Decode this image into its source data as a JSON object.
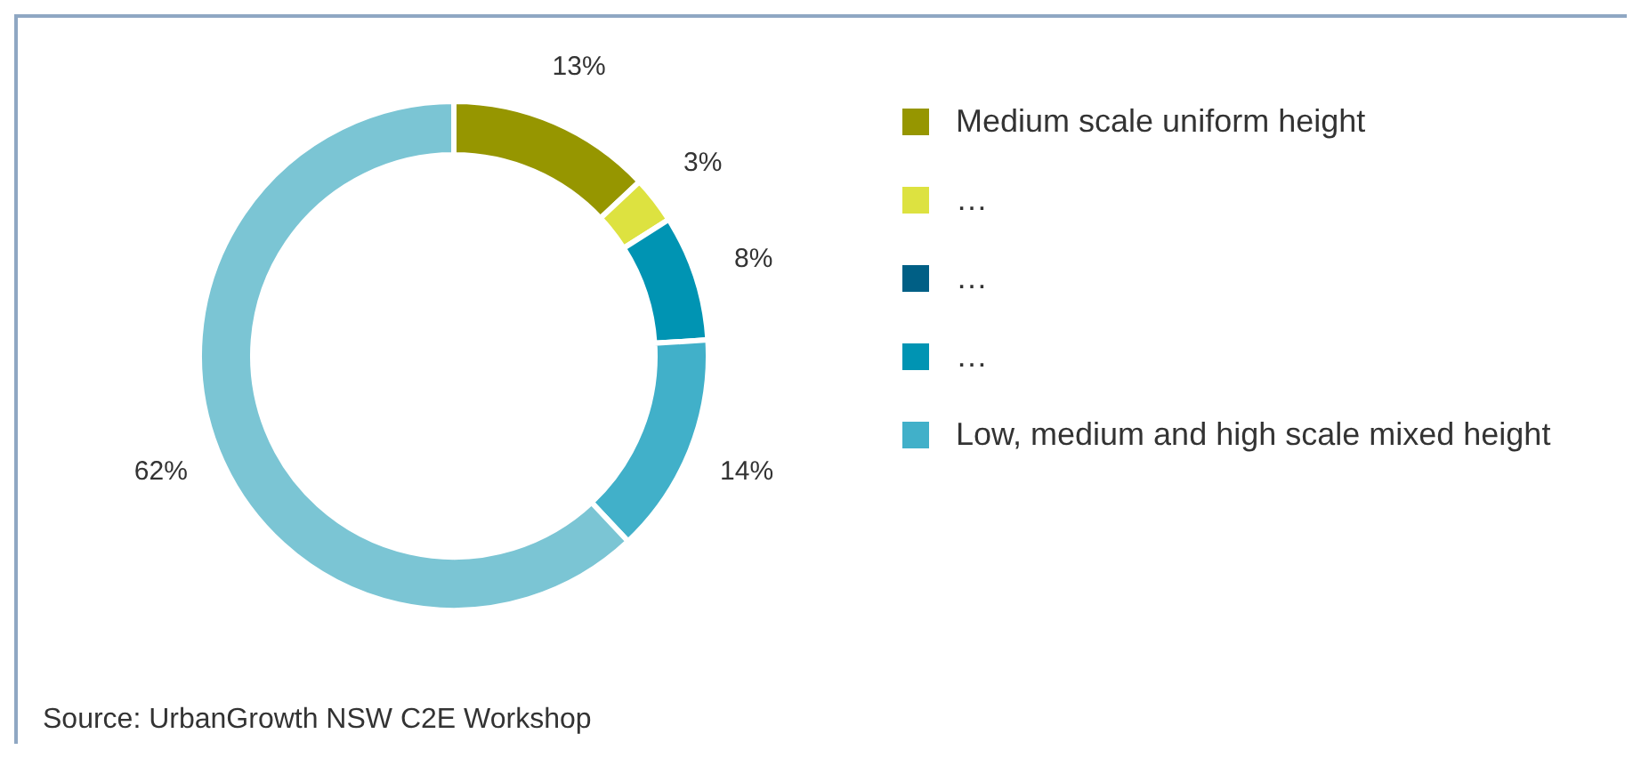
{
  "chart_data": {
    "type": "donut",
    "categories": [
      "Medium scale uniform height",
      "…",
      "…",
      "…",
      "Low, medium and high scale mixed height",
      null
    ],
    "values": [
      13,
      3,
      0,
      8,
      14,
      62
    ],
    "colors": [
      "#969600",
      "#dde240",
      "#005f85",
      "#0094b3",
      "#41b0c9",
      "#7bc5d4"
    ],
    "value_labels": [
      "13%",
      "3%",
      null,
      "8%",
      "14%",
      "62%"
    ],
    "legend": "right",
    "annotations": [
      "Source: UrbanGrowth NSW C2E Workshop"
    ]
  }
}
